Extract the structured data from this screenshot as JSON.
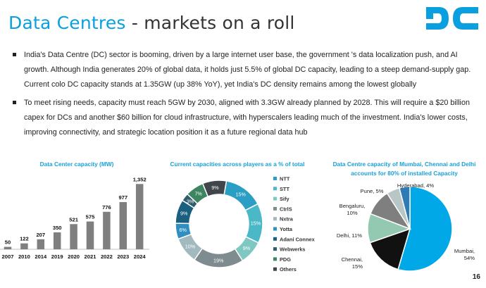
{
  "title": {
    "accent": "Data Centres",
    "rest": "- markets on a roll"
  },
  "bullets": [
    "India's Data Centre (DC) sector is booming, driven by a large internet user base, the government 's data localization push, and AI growth. Although India generates 20% of global data, it holds just 5.5% of global DC capacity, leading to a steep demand-supply gap. Current colo DC capacity stands at 1.35GW (up 38% YoY), yet India's DC density remains among the lowest globally",
    "To meet rising needs, capacity must reach 5GW by 2030, aligned with 3.3GW already planned by 2028. This will require a $20 billion capex for DCs and another $60 billion for cloud infrastructure, with hyperscalers leading much of the investment. India's lower costs, improving connectivity, and strategic location position it as a future regional data hub"
  ],
  "page_number": "16",
  "colors": {
    "accent": "#0aa0e0",
    "bar": "#7f7f7f"
  },
  "chart_data": [
    {
      "type": "bar",
      "title": "Data Center capacity (MW)",
      "categories": [
        "2007",
        "2010",
        "2014",
        "2019",
        "2020",
        "2021",
        "2022",
        "2023",
        "2024"
      ],
      "values": [
        50,
        122,
        207,
        350,
        521,
        575,
        776,
        977,
        1352
      ],
      "value_labels": [
        "50",
        "122",
        "207",
        "350",
        "521",
        "575",
        "776",
        "977",
        "1,352"
      ],
      "ylim": [
        0,
        1400
      ]
    },
    {
      "type": "pie",
      "title": "Current capacities across players as a % of total",
      "donut": true,
      "labels": [
        "NTT",
        "STT",
        "Sify",
        "CtrlS",
        "Nxtra",
        "Yotta",
        "Adani Connex",
        "Webwerks",
        "PDG",
        "Others"
      ],
      "values": [
        15,
        15,
        9,
        19,
        10,
        6,
        9,
        3,
        7,
        9
      ],
      "slice_labels": [
        "15%",
        "15%",
        "9%",
        "19%",
        "10%",
        "6%",
        "9%",
        "3%",
        "7%",
        "9%"
      ],
      "colors": [
        "#2b9ec4",
        "#4ab8c6",
        "#7fc7c1",
        "#7f8c8f",
        "#a2b9c0",
        "#2f8fc1",
        "#1b5f7f",
        "#2e5e6b",
        "#3d8460",
        "#404649"
      ],
      "legend_position": "right"
    },
    {
      "type": "pie",
      "title": "Data Centre capacity of Mumbai, Chennai and Delhi accounts for 80% of installed Capacity",
      "labels": [
        "Mumbai",
        "Chennai",
        "Delhi",
        "Bengaluru",
        "Pune",
        "Hyderabad"
      ],
      "values": [
        54,
        15,
        11,
        10,
        5,
        4
      ],
      "slice_labels": [
        "Mumbai,\n54%",
        "Chennai,\n15%",
        "Delhi, 11%",
        "Bengaluru,\n10%",
        "Pune, 5%",
        "Hyderabad, 4%"
      ],
      "colors": [
        "#00a8e8",
        "#111111",
        "#93c9b0",
        "#7f7f7f",
        "#b8c6c6",
        "#2f7bb5"
      ]
    }
  ]
}
